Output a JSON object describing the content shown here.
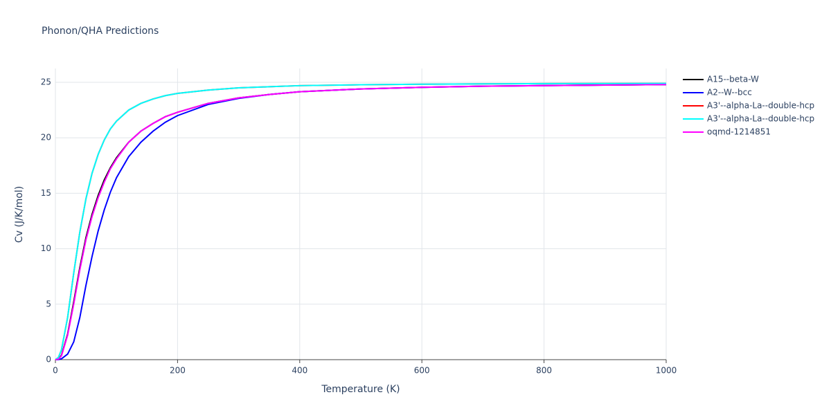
{
  "chart_data": {
    "type": "line",
    "title": "Phonon/QHA Predictions",
    "x_label": "Temperature (K)",
    "y_label": "Cv (J/K/mol)",
    "x": [
      0,
      5,
      10,
      20,
      30,
      40,
      50,
      60,
      70,
      80,
      90,
      100,
      120,
      140,
      160,
      180,
      200,
      250,
      300,
      350,
      400,
      500,
      600,
      700,
      800,
      900,
      1000
    ],
    "series": [
      {
        "name": "A15--beta-W",
        "color": "#000000",
        "values": [
          0,
          0.05,
          0.4,
          2.3,
          5.2,
          8.3,
          11,
          13.1,
          14.8,
          16.2,
          17.3,
          18.2,
          19.6,
          20.6,
          21.3,
          21.9,
          22.3,
          23.1,
          23.6,
          23.9,
          24.15,
          24.4,
          24.55,
          24.65,
          24.7,
          24.75,
          24.8
        ]
      },
      {
        "name": "A2--W--bcc",
        "color": "#0000ff",
        "values": [
          0,
          0.01,
          0.08,
          0.5,
          1.6,
          3.8,
          6.7,
          9.3,
          11.6,
          13.5,
          15.1,
          16.4,
          18.3,
          19.6,
          20.6,
          21.4,
          22.0,
          23.0,
          23.55,
          23.9,
          24.15,
          24.4,
          24.55,
          24.65,
          24.7,
          24.75,
          24.8
        ]
      },
      {
        "name": "A3'--alpha-La--double-hcp",
        "color": "#ff0000",
        "values": [
          0,
          0.2,
          0.9,
          3.8,
          7.8,
          11.5,
          14.5,
          16.8,
          18.5,
          19.8,
          20.8,
          21.5,
          22.5,
          23.1,
          23.5,
          23.8,
          24.0,
          24.3,
          24.5,
          24.6,
          24.7,
          24.78,
          24.83,
          24.86,
          24.88,
          24.89,
          24.9
        ]
      },
      {
        "name": "A3'--alpha-La--double-hcp",
        "color": "#00ffff",
        "values": [
          0,
          0.2,
          0.9,
          3.8,
          7.8,
          11.5,
          14.5,
          16.8,
          18.5,
          19.8,
          20.8,
          21.5,
          22.5,
          23.1,
          23.5,
          23.8,
          24.0,
          24.3,
          24.5,
          24.6,
          24.7,
          24.78,
          24.83,
          24.86,
          24.88,
          24.89,
          24.9
        ]
      },
      {
        "name": "oqmd-1214851",
        "color": "#ff00ff",
        "values": [
          0,
          0.04,
          0.35,
          2.2,
          5.0,
          8.1,
          10.8,
          12.9,
          14.6,
          16.0,
          17.2,
          18.1,
          19.6,
          20.6,
          21.3,
          21.9,
          22.3,
          23.1,
          23.6,
          23.9,
          24.15,
          24.4,
          24.55,
          24.65,
          24.7,
          24.75,
          24.8
        ]
      }
    ],
    "xlim": [
      0,
      1000
    ],
    "xticks": [
      0,
      200,
      400,
      600,
      800,
      1000
    ],
    "ylim": [
      0,
      25
    ],
    "yticks": [
      0,
      5,
      10,
      15,
      20,
      25
    ],
    "grid": true,
    "legend": "right"
  }
}
